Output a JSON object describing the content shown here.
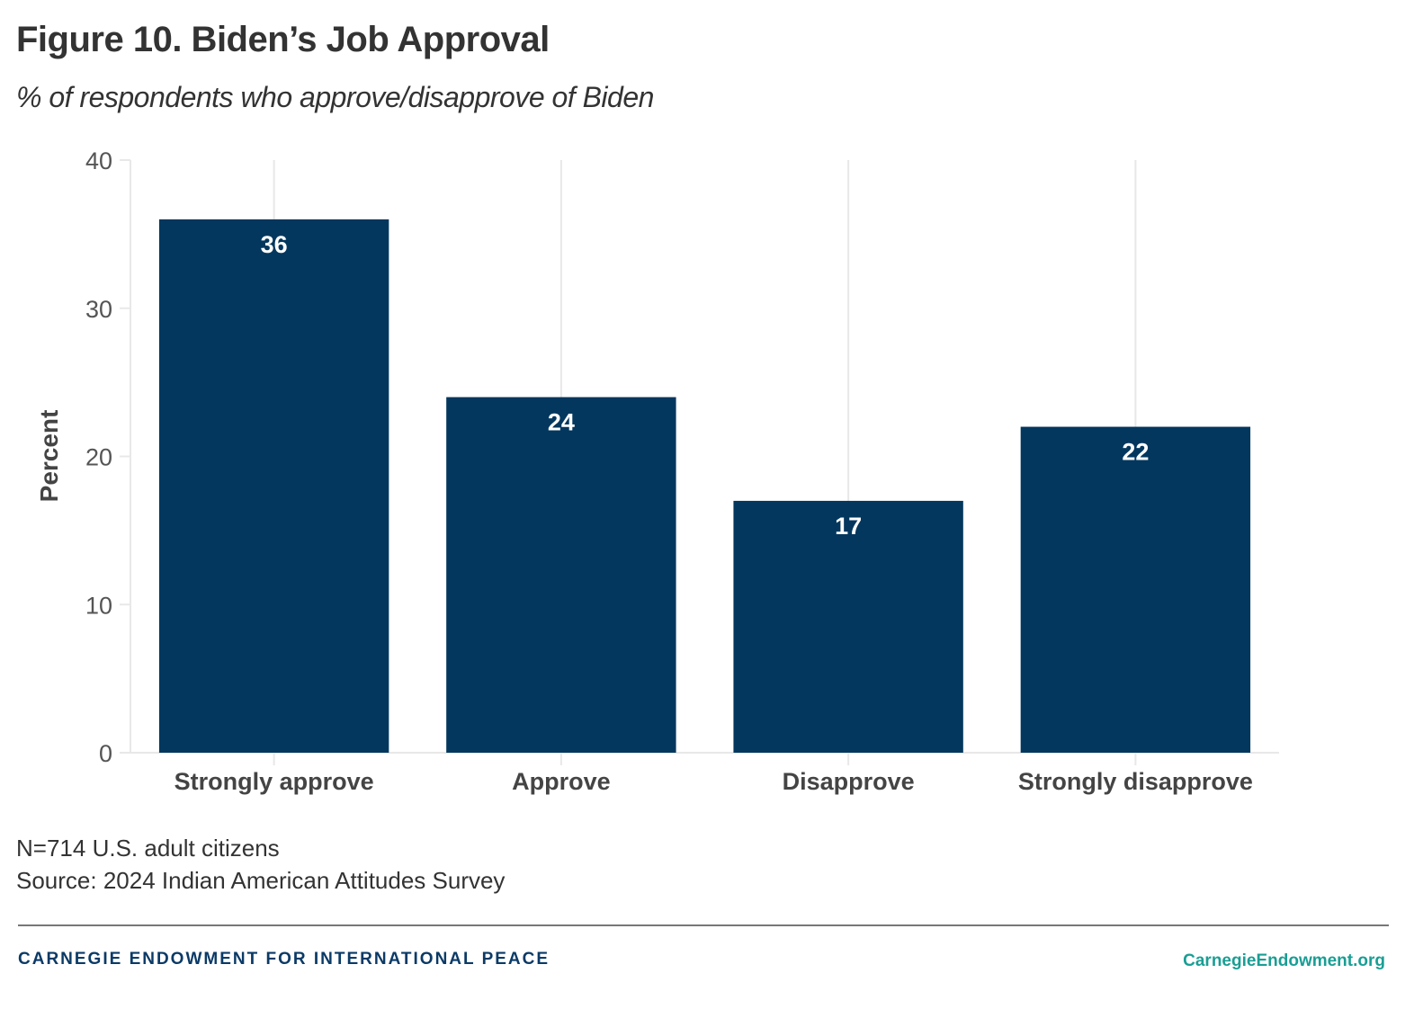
{
  "title": "Figure 10. Biden’s Job Approval",
  "subtitle": "% of respondents who approve/disapprove of Biden",
  "notes": {
    "sample": "N=714 U.S. adult citizens",
    "source": "Source: 2024 Indian American Attitudes Survey"
  },
  "footer": {
    "brand": "CARNEGIE ENDOWMENT FOR INTERNATIONAL PEACE",
    "site": "CarnegieEndowment.org"
  },
  "colors": {
    "bar": "#03375e",
    "grid": "#e8e8e8",
    "brand": "#0b3a66",
    "site": "#1a9e94"
  },
  "chart_data": {
    "type": "bar",
    "title": "Figure 10. Biden’s Job Approval",
    "subtitle": "% of respondents who approve/disapprove of Biden",
    "categories": [
      "Strongly approve",
      "Approve",
      "Disapprove",
      "Strongly disapprove"
    ],
    "values": [
      36,
      24,
      17,
      22
    ],
    "data_labels": [
      "36",
      "24",
      "17",
      "22"
    ],
    "xlabel": "",
    "ylabel": "Percent",
    "ylim": [
      0,
      40
    ],
    "yticks": [
      0,
      10,
      20,
      30,
      40
    ],
    "grid": "vertical-at-categories",
    "legend": "none"
  }
}
